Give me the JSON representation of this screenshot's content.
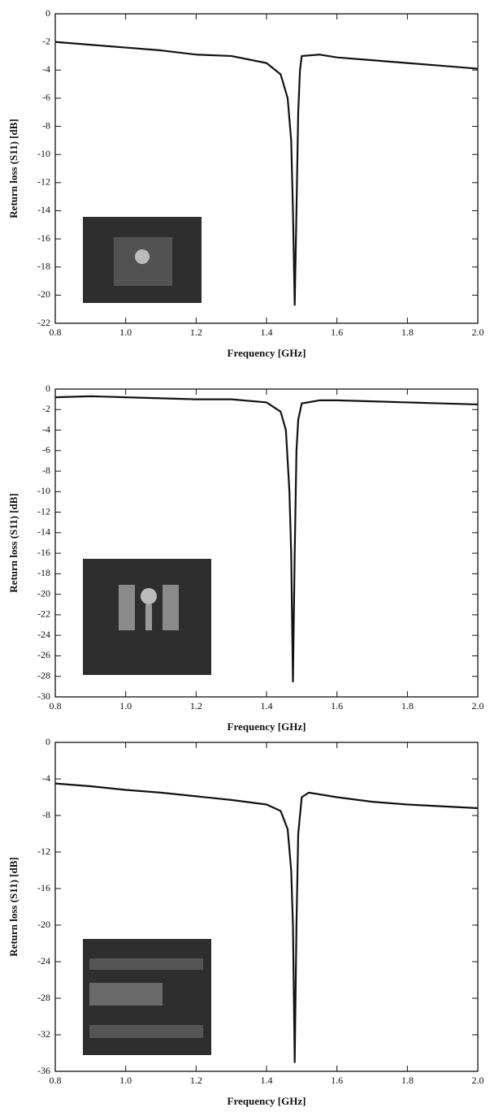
{
  "chart_data": [
    {
      "type": "line",
      "xlabel": "Frequency [GHz]",
      "ylabel": "Return loss (S11) [dB]",
      "x": [
        0.8,
        0.9,
        1.0,
        1.1,
        1.2,
        1.3,
        1.4,
        1.44,
        1.46,
        1.47,
        1.475,
        1.48,
        1.485,
        1.49,
        1.495,
        1.5,
        1.55,
        1.6,
        1.7,
        1.8,
        1.9,
        2.0
      ],
      "series": [
        {
          "color": "#111111",
          "values": [
            -2,
            -2.2,
            -2.4,
            -2.6,
            -2.9,
            -3.0,
            -3.5,
            -4.3,
            -6,
            -9,
            -14,
            -20.7,
            -14,
            -7,
            -4,
            -3,
            -2.9,
            -3.1,
            -3.3,
            -3.5,
            -3.7,
            -3.9
          ]
        }
      ],
      "xlim": [
        0.8,
        2.0
      ],
      "xticks": [
        0.8,
        {
          "value": 1,
          "label": "1.0"
        },
        1.2,
        1.4,
        1.6,
        1.8,
        {
          "value": 2,
          "label": "2.0"
        }
      ],
      "ylim": [
        -22,
        0
      ],
      "yticks": [
        0,
        -2,
        -4,
        -6,
        -8,
        -10,
        -12,
        -14,
        -16,
        -18,
        -20,
        -22
      ]
    },
    {
      "type": "line",
      "xlabel": "Frequency [GHz]",
      "ylabel": "Return loss (S11) [dB]",
      "x": [
        0.8,
        0.9,
        1.0,
        1.1,
        1.2,
        1.3,
        1.4,
        1.44,
        1.455,
        1.465,
        1.47,
        1.475,
        1.48,
        1.485,
        1.49,
        1.5,
        1.55,
        1.6,
        1.7,
        1.8,
        1.9,
        2.0
      ],
      "series": [
        {
          "color": "#111111",
          "values": [
            -0.8,
            -0.7,
            -0.8,
            -0.9,
            -1.0,
            -1.0,
            -1.3,
            -2.2,
            -4,
            -10,
            -16,
            -28.5,
            -16,
            -6,
            -3,
            -1.4,
            -1.1,
            -1.1,
            -1.2,
            -1.3,
            -1.4,
            -1.5
          ]
        }
      ],
      "xlim": [
        0.8,
        2.0
      ],
      "xticks": [
        0.8,
        {
          "value": 1,
          "label": "1.0"
        },
        1.2,
        1.4,
        1.6,
        1.8,
        {
          "value": 2,
          "label": "2.0"
        }
      ],
      "ylim": [
        -30,
        0
      ],
      "yticks": [
        0,
        -2,
        -4,
        -6,
        -8,
        -10,
        -12,
        -14,
        -16,
        -18,
        -20,
        -22,
        -24,
        -26,
        -28,
        -30
      ]
    },
    {
      "type": "line",
      "xlabel": "Frequency [GHz]",
      "ylabel": "Return loss (S11) [dB]",
      "x": [
        0.8,
        0.9,
        1.0,
        1.1,
        1.2,
        1.3,
        1.4,
        1.44,
        1.46,
        1.47,
        1.475,
        1.48,
        1.485,
        1.49,
        1.5,
        1.52,
        1.6,
        1.7,
        1.8,
        1.9,
        2.0
      ],
      "series": [
        {
          "color": "#111111",
          "values": [
            -4.5,
            -4.8,
            -5.2,
            -5.5,
            -5.9,
            -6.3,
            -6.8,
            -7.5,
            -9.5,
            -14,
            -20,
            -35,
            -20,
            -10,
            -6,
            -5.5,
            -6.0,
            -6.5,
            -6.8,
            -7.0,
            -7.2
          ]
        }
      ],
      "xlim": [
        0.8,
        2.0
      ],
      "xticks": [
        0.8,
        {
          "value": 1,
          "label": "1.0"
        },
        1.2,
        1.4,
        1.6,
        1.8,
        {
          "value": 2,
          "label": "2.0"
        }
      ],
      "ylim": [
        -36,
        0
      ],
      "yticks": [
        0,
        -4,
        -8,
        -12,
        -16,
        -20,
        -24,
        -28,
        -32,
        -36
      ]
    }
  ]
}
